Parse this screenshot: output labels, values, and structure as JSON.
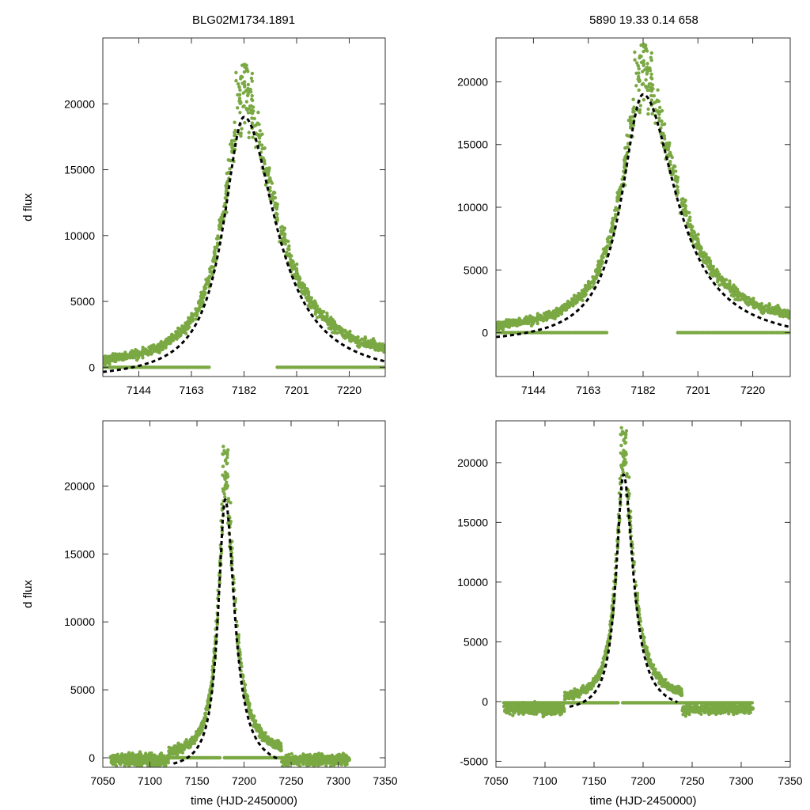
{
  "colors": {
    "points": "#7aa843",
    "fit": "#000000",
    "frame": "#333333"
  },
  "titles": {
    "left": "BLG02M1734.1891",
    "right": "5890  19.33  0.14  658"
  },
  "chart_data": [
    {
      "type": "scatter",
      "panel": "top-left",
      "ylabel": "d flux",
      "xlabel": "",
      "xlim": [
        7131,
        7233
      ],
      "ylim": [
        -700,
        25000
      ],
      "xticks": [
        7144,
        7163,
        7182,
        7201,
        7220
      ],
      "yticks": [
        0,
        5000,
        10000,
        15000,
        20000
      ],
      "series": [
        {
          "name": "observations",
          "kind": "points"
        },
        {
          "name": "model",
          "kind": "fit",
          "peak_time": 7182,
          "peak_flux": 19000,
          "left_width": 9,
          "right_width": 14,
          "baseline": -950
        }
      ]
    },
    {
      "type": "scatter",
      "panel": "top-right",
      "ylabel": "",
      "xlabel": "",
      "xlim": [
        7131,
        7233
      ],
      "ylim": [
        -3500,
        23500
      ],
      "xticks": [
        7144,
        7163,
        7182,
        7201,
        7220
      ],
      "yticks": [
        0,
        5000,
        10000,
        15000,
        20000
      ],
      "series": [
        {
          "name": "observations",
          "kind": "points"
        },
        {
          "name": "model",
          "kind": "fit",
          "peak_time": 7182,
          "peak_flux": 19000,
          "left_width": 9,
          "right_width": 14,
          "baseline": -950
        }
      ]
    },
    {
      "type": "scatter",
      "panel": "bottom-left",
      "ylabel": "d flux",
      "xlabel": "time (HJD-2450000)",
      "xlim": [
        7050,
        7350
      ],
      "ylim": [
        -700,
        24800
      ],
      "xticks": [
        7050,
        7100,
        7150,
        7200,
        7250,
        7300,
        7350
      ],
      "yticks": [
        0,
        5000,
        10000,
        15000,
        20000
      ],
      "series": [
        {
          "name": "observations",
          "kind": "points"
        },
        {
          "name": "model",
          "kind": "fit",
          "peak_time": 7180,
          "peak_flux": 19000,
          "left_width": 9,
          "right_width": 12,
          "baseline": -950
        }
      ]
    },
    {
      "type": "scatter",
      "panel": "bottom-right",
      "ylabel": "",
      "xlabel": "time (HJD-2450000)",
      "xlim": [
        7050,
        7350
      ],
      "ylim": [
        -5500,
        23500
      ],
      "xticks": [
        7050,
        7100,
        7150,
        7200,
        7250,
        7300,
        7350
      ],
      "yticks": [
        -5000,
        0,
        5000,
        10000,
        15000,
        20000
      ],
      "series": [
        {
          "name": "observations",
          "kind": "points"
        },
        {
          "name": "model",
          "kind": "fit",
          "peak_time": 7180,
          "peak_flux": 19000,
          "left_width": 9,
          "right_width": 12,
          "baseline": -950
        }
      ]
    }
  ]
}
